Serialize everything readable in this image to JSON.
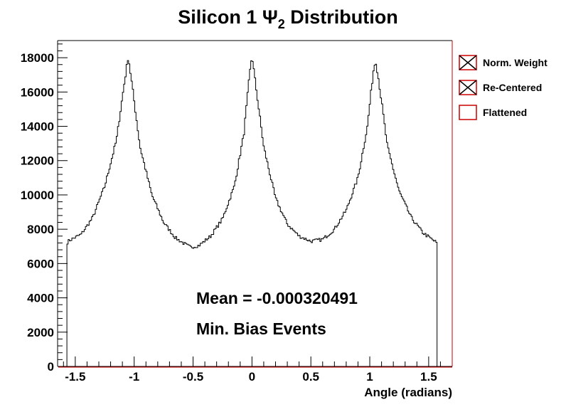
{
  "chart_data": {
    "type": "histogram-step",
    "title": "Silicon 1 Ψ",
    "title_subscript": "2",
    "title_suffix": " Distribution",
    "xlabel": "Angle (radians)",
    "ylabel": "",
    "xlim": [
      -1.65,
      1.7
    ],
    "ylim": [
      0,
      19000
    ],
    "x_ticks": [
      -1.5,
      -1,
      -0.5,
      0,
      0.5,
      1,
      1.5
    ],
    "x_tick_labels": [
      "-1.5",
      "-1",
      "-0.5",
      "0",
      "0.5",
      "1",
      "1.5"
    ],
    "y_ticks": [
      0,
      2000,
      4000,
      6000,
      8000,
      10000,
      12000,
      14000,
      16000,
      18000
    ],
    "y_tick_labels": [
      "0",
      "2000",
      "4000",
      "6000",
      "8000",
      "10000",
      "12000",
      "14000",
      "16000",
      "18000"
    ],
    "grid": false,
    "legend_position": "right-outside-top",
    "annotations": [
      "Mean = -0.000320491",
      "Min. Bias Events"
    ],
    "legend": [
      {
        "label": "Norm. Weight",
        "marker": "box-x",
        "color": "#cc0000"
      },
      {
        "label": "Re-Centered",
        "marker": "box-x",
        "color": "#cc0000"
      },
      {
        "label": "Flattened",
        "marker": "box",
        "color": "#cc0000"
      }
    ],
    "series": [
      {
        "line_color": "#000000",
        "x_range": [
          -1.571,
          1.571
        ],
        "bins": 300,
        "points": [
          {
            "x": -1.571,
            "y": 7200
          },
          {
            "x": -1.55,
            "y": 7350
          },
          {
            "x": -1.45,
            "y": 7700
          },
          {
            "x": -1.35,
            "y": 8700
          },
          {
            "x": -1.25,
            "y": 10500
          },
          {
            "x": -1.15,
            "y": 13200
          },
          {
            "x": -1.09,
            "y": 16200
          },
          {
            "x": -1.05,
            "y": 18100
          },
          {
            "x": -1.01,
            "y": 16000
          },
          {
            "x": -0.95,
            "y": 12800
          },
          {
            "x": -0.85,
            "y": 10000
          },
          {
            "x": -0.75,
            "y": 8400
          },
          {
            "x": -0.65,
            "y": 7500
          },
          {
            "x": -0.55,
            "y": 7050
          },
          {
            "x": -0.52,
            "y": 6950
          },
          {
            "x": -0.45,
            "y": 7050
          },
          {
            "x": -0.35,
            "y": 7600
          },
          {
            "x": -0.25,
            "y": 8600
          },
          {
            "x": -0.15,
            "y": 10500
          },
          {
            "x": -0.07,
            "y": 13500
          },
          {
            "x": -0.02,
            "y": 17000
          },
          {
            "x": 0.0,
            "y": 18150
          },
          {
            "x": 0.03,
            "y": 16500
          },
          {
            "x": 0.1,
            "y": 12800
          },
          {
            "x": 0.2,
            "y": 9800
          },
          {
            "x": 0.3,
            "y": 8300
          },
          {
            "x": 0.4,
            "y": 7600
          },
          {
            "x": 0.5,
            "y": 7300
          },
          {
            "x": 0.6,
            "y": 7400
          },
          {
            "x": 0.7,
            "y": 8000
          },
          {
            "x": 0.8,
            "y": 9100
          },
          {
            "x": 0.9,
            "y": 11000
          },
          {
            "x": 0.98,
            "y": 14000
          },
          {
            "x": 1.03,
            "y": 17200
          },
          {
            "x": 1.05,
            "y": 17900
          },
          {
            "x": 1.08,
            "y": 16500
          },
          {
            "x": 1.15,
            "y": 12800
          },
          {
            "x": 1.25,
            "y": 10200
          },
          {
            "x": 1.35,
            "y": 8700
          },
          {
            "x": 1.45,
            "y": 7800
          },
          {
            "x": 1.55,
            "y": 7300
          },
          {
            "x": 1.571,
            "y": 7200
          }
        ]
      }
    ]
  }
}
